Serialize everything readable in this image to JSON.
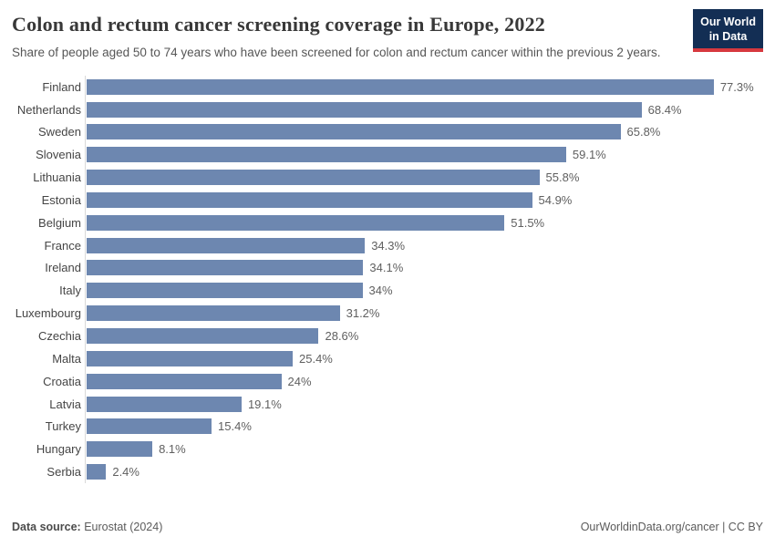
{
  "header": {
    "title": "Colon and rectum cancer screening coverage in Europe, 2022",
    "subtitle": "Share of people aged 50 to 74 years who have been screened for colon and rectum cancer within the previous 2 years.",
    "logo": {
      "line1": "Our World",
      "line2": "in Data"
    }
  },
  "chart_data": {
    "type": "bar",
    "orientation": "horizontal",
    "title": "Colon and rectum cancer screening coverage in Europe, 2022",
    "xlabel": "",
    "ylabel": "",
    "categories": [
      "Finland",
      "Netherlands",
      "Sweden",
      "Slovenia",
      "Lithuania",
      "Estonia",
      "Belgium",
      "France",
      "Ireland",
      "Italy",
      "Luxembourg",
      "Czechia",
      "Malta",
      "Croatia",
      "Latvia",
      "Turkey",
      "Hungary",
      "Serbia"
    ],
    "values": [
      77.3,
      68.4,
      65.8,
      59.1,
      55.8,
      54.9,
      51.5,
      34.3,
      34.1,
      34,
      31.2,
      28.6,
      25.4,
      24,
      19.1,
      15.4,
      8.1,
      2.4
    ],
    "value_labels": [
      "77.3%",
      "68.4%",
      "65.8%",
      "59.1%",
      "55.8%",
      "54.9%",
      "51.5%",
      "34.3%",
      "34.1%",
      "34%",
      "31.2%",
      "28.6%",
      "25.4%",
      "24%",
      "19.1%",
      "15.4%",
      "8.1%",
      "2.4%"
    ],
    "unit": "%",
    "xlim": [
      0,
      83.5
    ],
    "grid": false,
    "legend": false,
    "bar_color": "#6d87b0"
  },
  "footer": {
    "datasource_label": "Data source:",
    "datasource_value": " Eurostat (2024)",
    "attribution": "OurWorldinData.org/cancer | CC BY"
  },
  "colors": {
    "bar": "#6d87b0",
    "logo_background": "#132e54",
    "logo_accent_red": "#d7393f",
    "title_text": "#383838",
    "subtitle_text": "#565656",
    "axis_line": "#d9d9d9"
  }
}
